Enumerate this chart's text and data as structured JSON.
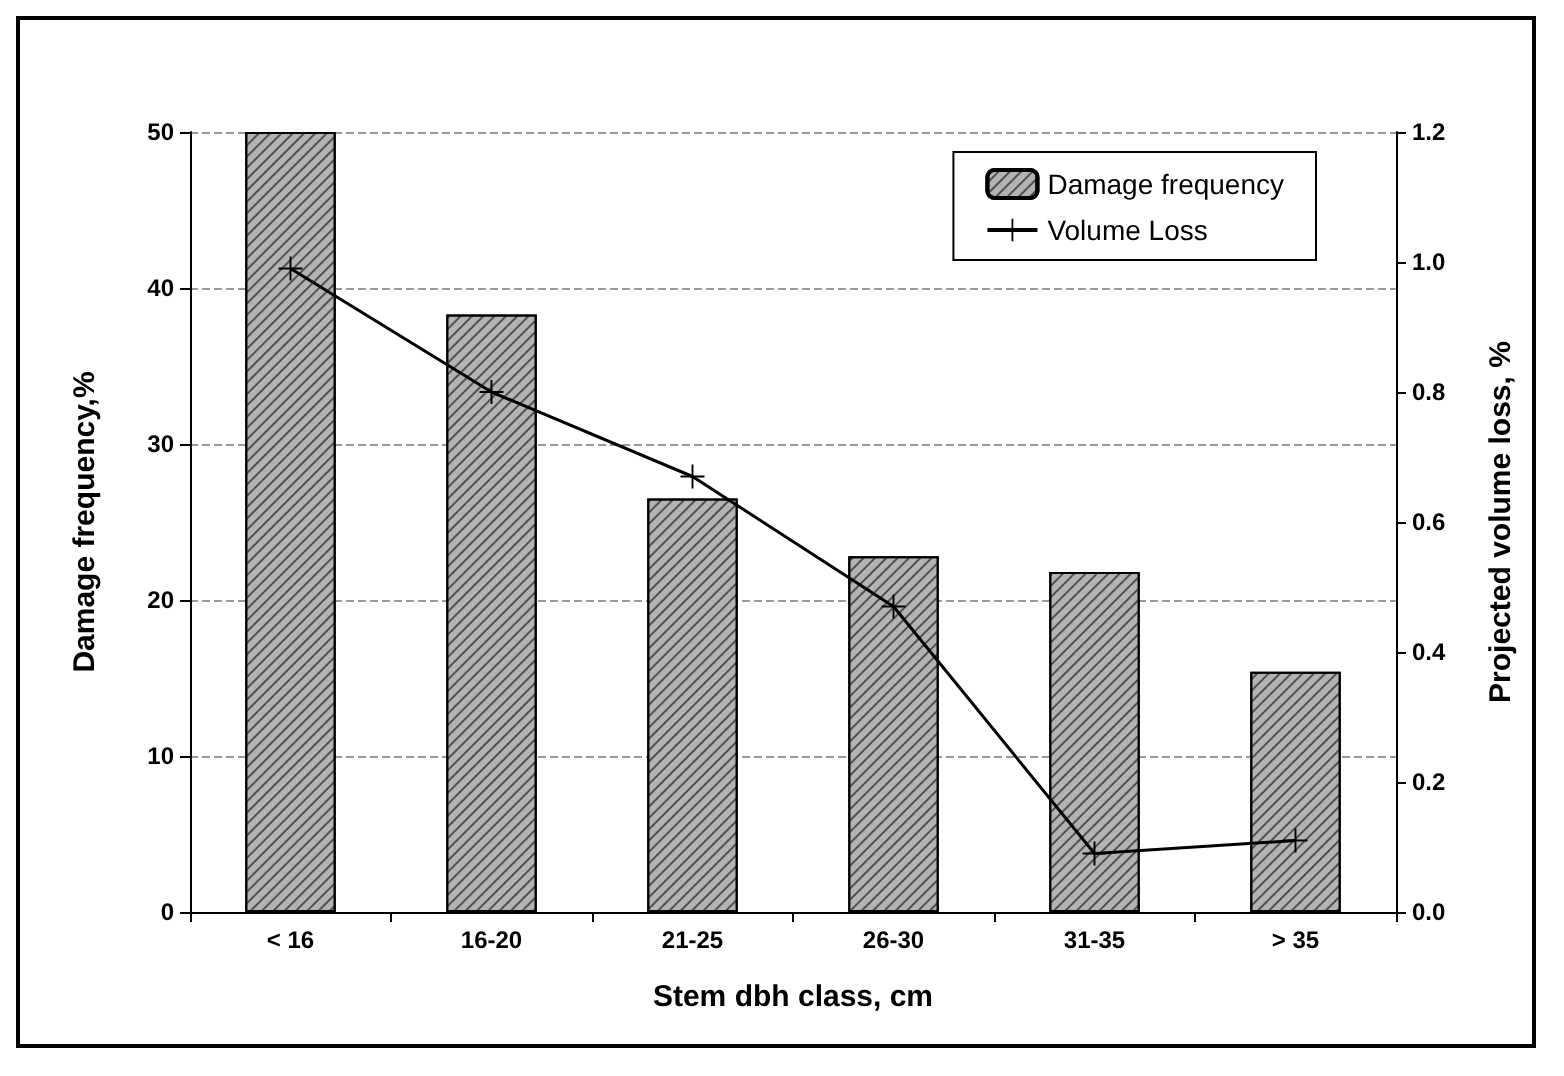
{
  "chart_data": {
    "type": "bar",
    "xlabel": "Stem dbh class, cm",
    "ylabel": "Damage frequency,%",
    "y2label": "Projected volume loss, %",
    "categories": [
      "< 16",
      "16-20",
      "21-25",
      "26-30",
      "31-35",
      "> 35"
    ],
    "series": [
      {
        "name": "Damage frequency",
        "color": "#b3b3b3",
        "values": [
          50,
          38.3,
          26.5,
          22.8,
          21.8,
          15.4
        ]
      },
      {
        "name": "Volume Loss",
        "type": "line",
        "axis": "y2",
        "color": "#000000",
        "values": [
          0.99,
          0.8,
          0.67,
          0.47,
          0.09,
          0.11
        ]
      }
    ],
    "ylim": [
      0,
      50
    ],
    "yticks": [
      0,
      10,
      20,
      30,
      40,
      50
    ],
    "y2lim": [
      0,
      1.2
    ],
    "y2ticks": [
      {
        "value": 0,
        "label": "0.0"
      },
      0.2,
      0.4,
      0.6,
      0.8,
      {
        "value": 1,
        "label": "1.0"
      },
      1.2
    ],
    "grid": "y",
    "legend": "top right",
    "marker": "cross",
    "line_style": "solid"
  }
}
